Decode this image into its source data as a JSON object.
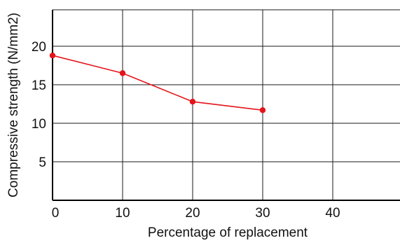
{
  "chart_data": {
    "type": "line",
    "title": "",
    "xlabel": "Percentage of replacement",
    "ylabel": "Compressive strength (N/mm2)",
    "xlim": [
      0,
      50
    ],
    "ylim": [
      0,
      25
    ],
    "xticks": [
      0,
      10,
      20,
      30,
      40
    ],
    "yticks": [
      5,
      10,
      15,
      20
    ],
    "xtick_labels": [
      "0",
      "10",
      "20",
      "30",
      "40"
    ],
    "ytick_labels": [
      "5",
      "10",
      "15",
      "20"
    ],
    "grid": true,
    "legend": "none",
    "series": [
      {
        "color": "#e3151b",
        "x": [
          0,
          10,
          20,
          30
        ],
        "y": [
          18.8,
          16.5,
          12.8,
          11.7
        ]
      }
    ]
  },
  "colors": {
    "series_line": "#e3151b",
    "grid": "#1a1a1a",
    "axis": "#000000"
  }
}
